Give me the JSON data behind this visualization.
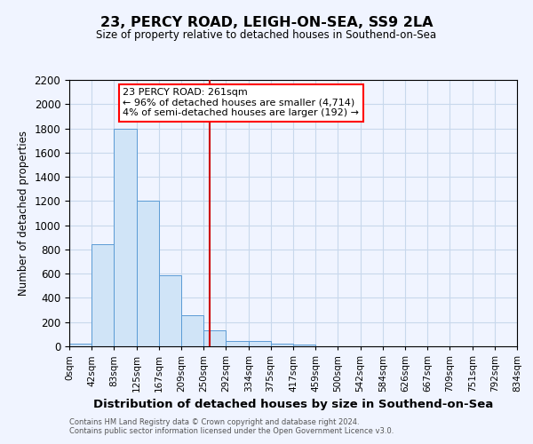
{
  "title": "23, PERCY ROAD, LEIGH-ON-SEA, SS9 2LA",
  "subtitle": "Size of property relative to detached houses in Southend-on-Sea",
  "xlabel": "Distribution of detached houses by size in Southend-on-Sea",
  "ylabel": "Number of detached properties",
  "footnote1": "Contains HM Land Registry data © Crown copyright and database right 2024.",
  "footnote2": "Contains public sector information licensed under the Open Government Licence v3.0.",
  "bar_edges": [
    0,
    42,
    83,
    125,
    167,
    209,
    250,
    292,
    334,
    375,
    417,
    459,
    500,
    542,
    584,
    626,
    667,
    709,
    751,
    792,
    834
  ],
  "bar_heights": [
    25,
    840,
    1800,
    1200,
    590,
    260,
    130,
    45,
    45,
    25,
    15,
    0,
    0,
    0,
    0,
    0,
    0,
    0,
    0,
    0
  ],
  "bar_color": "#d0e4f7",
  "bar_edgecolor": "#5b9bd5",
  "vline_x": 261,
  "vline_color": "#cc0000",
  "ylim": [
    0,
    2200
  ],
  "yticks": [
    0,
    200,
    400,
    600,
    800,
    1000,
    1200,
    1400,
    1600,
    1800,
    2000,
    2200
  ],
  "xtick_labels": [
    "0sqm",
    "42sqm",
    "83sqm",
    "125sqm",
    "167sqm",
    "209sqm",
    "250sqm",
    "292sqm",
    "334sqm",
    "375sqm",
    "417sqm",
    "459sqm",
    "500sqm",
    "542sqm",
    "584sqm",
    "626sqm",
    "667sqm",
    "709sqm",
    "751sqm",
    "792sqm",
    "834sqm"
  ],
  "annotation_line1": "23 PERCY ROAD: 261sqm",
  "annotation_line2": "← 96% of detached houses are smaller (4,714)",
  "annotation_line3": "4% of semi-detached houses are larger (192) →",
  "bg_color": "#f0f4ff",
  "grid_color": "#c8d8ec"
}
